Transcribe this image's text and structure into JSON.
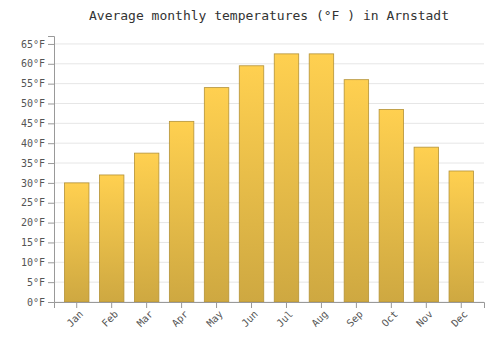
{
  "chart_data": {
    "type": "bar",
    "title": "Average monthly temperatures (°F ) in Arnstadt",
    "categories": [
      "Jan",
      "Feb",
      "Mar",
      "Apr",
      "May",
      "Jun",
      "Jul",
      "Aug",
      "Sep",
      "Oct",
      "Nov",
      "Dec"
    ],
    "values": [
      30,
      32,
      37.5,
      45.5,
      54,
      59.5,
      62.5,
      62.5,
      56,
      48.5,
      39,
      33
    ],
    "color": "#FFD050",
    "ylim": [
      0,
      67
    ],
    "yticks": [
      {
        "value": 0,
        "label": "0°F"
      },
      {
        "value": 5,
        "label": "5°F"
      },
      {
        "value": 10,
        "label": "10°F"
      },
      {
        "value": 15,
        "label": "15°F"
      },
      {
        "value": 20,
        "label": "20°F"
      },
      {
        "value": 25,
        "label": "25°F"
      },
      {
        "value": 30,
        "label": "30°F"
      },
      {
        "value": 35,
        "label": "35°F"
      },
      {
        "value": 40,
        "label": "40°F"
      },
      {
        "value": 45,
        "label": "45°F"
      },
      {
        "value": 50,
        "label": "50°F"
      },
      {
        "value": 55,
        "label": "55°F"
      },
      {
        "value": 60,
        "label": "60°F"
      },
      {
        "value": 65,
        "label": "65°F"
      }
    ],
    "grid": true
  }
}
